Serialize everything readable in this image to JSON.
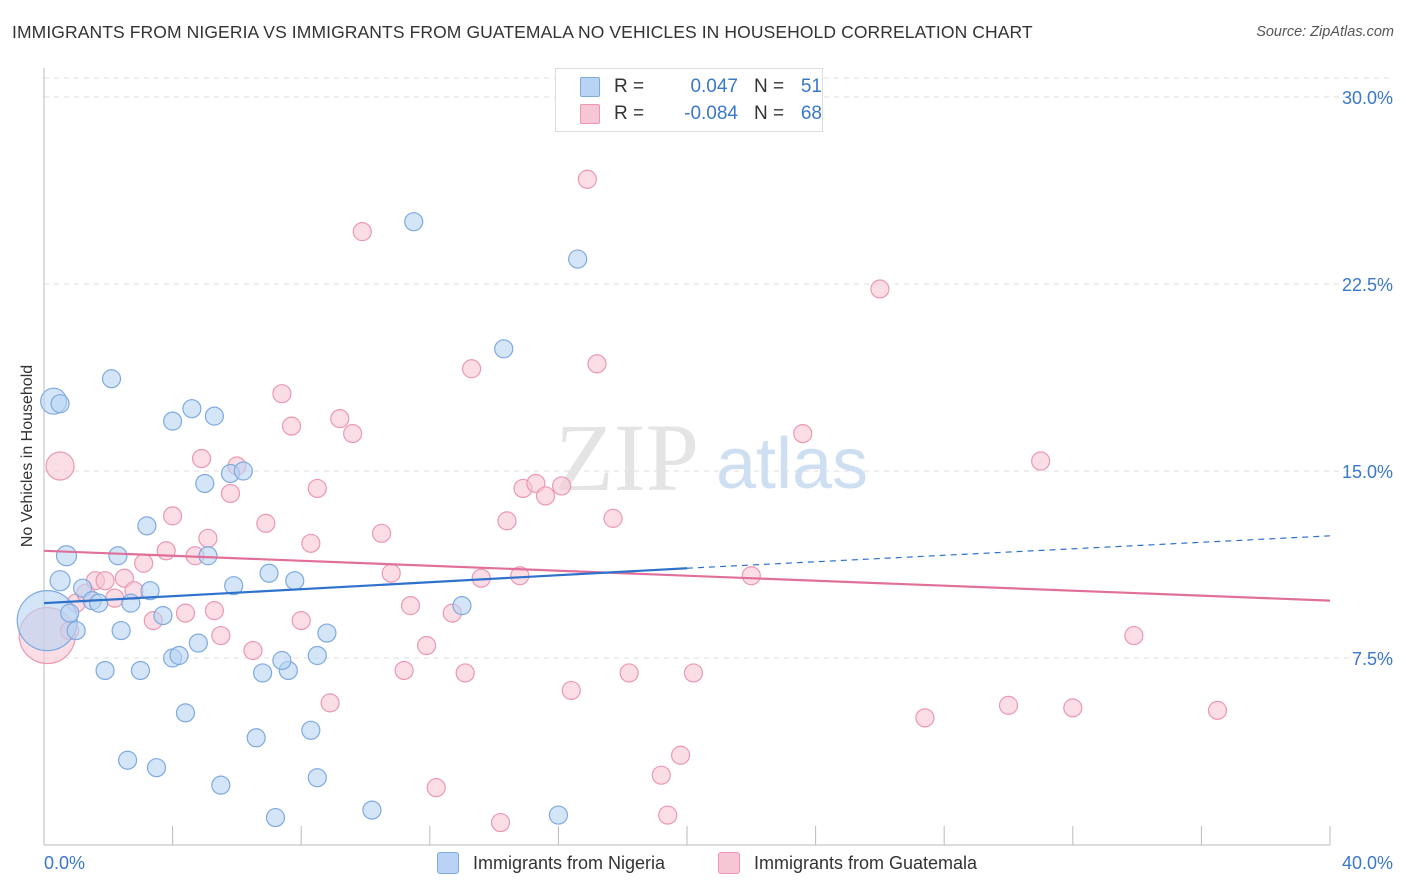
{
  "header": {
    "title": "IMMIGRANTS FROM NIGERIA VS IMMIGRANTS FROM GUATEMALA NO VEHICLES IN HOUSEHOLD CORRELATION CHART",
    "source": "Source: ZipAtlas.com"
  },
  "watermark": {
    "zip": "ZIP",
    "atlas": "atlas"
  },
  "colors": {
    "nigeria_fill": "#b8d3f3",
    "nigeria_stroke": "#7eaae0",
    "nigeria_line": "#2e72cc",
    "guatemala_fill": "#f7c6d4",
    "guatemala_stroke": "#ec98b2",
    "guatemala_line": "#e0709a",
    "tick_label": "#3a78c9",
    "grid": "#dddddd"
  },
  "legend": {
    "r_label": "R =",
    "n_label": "N =",
    "rows": [
      {
        "r": "0.047",
        "n": "51"
      },
      {
        "r": "-0.084",
        "n": "68"
      }
    ]
  },
  "chart_data": {
    "type": "scatter",
    "title": "IMMIGRANTS FROM NIGERIA VS IMMIGRANTS FROM GUATEMALA NO VEHICLES IN HOUSEHOLD CORRELATION CHART",
    "xlabel": "",
    "ylabel": "No Vehicles in Household",
    "xlim": [
      0,
      40
    ],
    "ylim": [
      0,
      30.5
    ],
    "x_tick_labels": [
      "0.0%",
      "40.0%"
    ],
    "y_ticks": [
      7.5,
      15.0,
      22.5,
      30.0
    ],
    "y_tick_labels": [
      "7.5%",
      "15.0%",
      "22.5%",
      "30.0%"
    ],
    "grid": true,
    "legend_position": "top-center",
    "series": [
      {
        "name": "Immigrants from Nigeria",
        "points": [
          [
            0.1,
            9.0
          ],
          [
            0.3,
            17.8
          ],
          [
            0.5,
            17.7
          ],
          [
            0.5,
            10.6
          ],
          [
            0.7,
            11.6
          ],
          [
            0.8,
            9.3
          ],
          [
            1.0,
            8.6
          ],
          [
            1.2,
            10.3
          ],
          [
            1.5,
            9.8
          ],
          [
            1.7,
            9.7
          ],
          [
            1.9,
            7.0
          ],
          [
            2.1,
            18.7
          ],
          [
            2.3,
            11.6
          ],
          [
            2.4,
            8.6
          ],
          [
            2.6,
            3.4
          ],
          [
            2.7,
            9.7
          ],
          [
            3.0,
            7.0
          ],
          [
            3.2,
            12.8
          ],
          [
            3.3,
            10.2
          ],
          [
            3.5,
            3.1
          ],
          [
            3.7,
            9.2
          ],
          [
            4.0,
            7.5
          ],
          [
            4.0,
            17.0
          ],
          [
            4.2,
            7.6
          ],
          [
            4.4,
            5.3
          ],
          [
            4.6,
            17.5
          ],
          [
            4.8,
            8.1
          ],
          [
            5.0,
            14.5
          ],
          [
            5.1,
            11.6
          ],
          [
            5.3,
            17.2
          ],
          [
            5.5,
            2.4
          ],
          [
            5.8,
            14.9
          ],
          [
            5.9,
            10.4
          ],
          [
            6.2,
            15.0
          ],
          [
            6.6,
            4.3
          ],
          [
            6.8,
            6.9
          ],
          [
            7.0,
            10.9
          ],
          [
            7.2,
            1.1
          ],
          [
            7.6,
            7.0
          ],
          [
            7.8,
            10.6
          ],
          [
            7.4,
            7.4
          ],
          [
            8.3,
            4.6
          ],
          [
            8.5,
            7.6
          ],
          [
            8.5,
            2.7
          ],
          [
            8.8,
            8.5
          ],
          [
            10.2,
            1.4
          ],
          [
            11.5,
            25.0
          ],
          [
            13.0,
            9.6
          ],
          [
            14.3,
            19.9
          ],
          [
            16.0,
            1.2
          ],
          [
            16.6,
            23.5
          ]
        ],
        "sizes": [
          30,
          13,
          9,
          10,
          10,
          9,
          9,
          9,
          9,
          9,
          9,
          9,
          9,
          9,
          9,
          9,
          9,
          9,
          9,
          9,
          9,
          9,
          9,
          9,
          9,
          9,
          9,
          9,
          9,
          9,
          9,
          9,
          9,
          9,
          9,
          9,
          9,
          9,
          9,
          9,
          9,
          9,
          9,
          9,
          9,
          9,
          9,
          9,
          9,
          9,
          9
        ]
      },
      {
        "name": "Immigrants from Guatemala",
        "points": [
          [
            0.1,
            8.4
          ],
          [
            0.5,
            15.2
          ],
          [
            0.8,
            8.6
          ],
          [
            1.0,
            9.7
          ],
          [
            1.3,
            10.1
          ],
          [
            1.6,
            10.6
          ],
          [
            1.9,
            10.6
          ],
          [
            2.2,
            9.9
          ],
          [
            2.5,
            10.7
          ],
          [
            2.8,
            10.2
          ],
          [
            3.1,
            11.3
          ],
          [
            3.4,
            9.0
          ],
          [
            3.8,
            11.8
          ],
          [
            4.0,
            13.2
          ],
          [
            4.4,
            9.3
          ],
          [
            4.7,
            11.6
          ],
          [
            4.9,
            15.5
          ],
          [
            5.1,
            12.3
          ],
          [
            5.3,
            9.4
          ],
          [
            5.5,
            8.4
          ],
          [
            5.8,
            14.1
          ],
          [
            6.0,
            15.2
          ],
          [
            6.5,
            7.8
          ],
          [
            6.9,
            12.9
          ],
          [
            7.4,
            18.1
          ],
          [
            7.7,
            16.8
          ],
          [
            8.0,
            9.0
          ],
          [
            8.3,
            12.1
          ],
          [
            8.5,
            14.3
          ],
          [
            8.9,
            5.7
          ],
          [
            9.2,
            17.1
          ],
          [
            9.6,
            16.5
          ],
          [
            9.9,
            24.6
          ],
          [
            10.5,
            12.5
          ],
          [
            10.8,
            10.9
          ],
          [
            11.2,
            7.0
          ],
          [
            11.4,
            9.6
          ],
          [
            11.9,
            8.0
          ],
          [
            12.2,
            2.3
          ],
          [
            12.7,
            9.3
          ],
          [
            13.1,
            6.9
          ],
          [
            13.3,
            19.1
          ],
          [
            13.6,
            10.7
          ],
          [
            14.2,
            0.9
          ],
          [
            14.4,
            13.0
          ],
          [
            14.8,
            10.8
          ],
          [
            14.9,
            14.3
          ],
          [
            15.3,
            14.5
          ],
          [
            15.6,
            14.0
          ],
          [
            16.1,
            14.4
          ],
          [
            16.4,
            6.2
          ],
          [
            16.9,
            26.7
          ],
          [
            17.2,
            19.3
          ],
          [
            17.7,
            13.1
          ],
          [
            18.2,
            6.9
          ],
          [
            19.2,
            2.8
          ],
          [
            19.4,
            1.2
          ],
          [
            19.8,
            3.6
          ],
          [
            20.2,
            6.9
          ],
          [
            22.0,
            10.8
          ],
          [
            23.6,
            16.5
          ],
          [
            26.0,
            22.3
          ],
          [
            27.4,
            5.1
          ],
          [
            30.0,
            5.6
          ],
          [
            31.0,
            15.4
          ],
          [
            32.0,
            5.5
          ],
          [
            33.9,
            8.4
          ],
          [
            36.5,
            5.4
          ]
        ],
        "sizes": [
          28,
          14,
          9,
          9,
          9,
          9,
          9,
          9,
          9,
          9,
          9,
          9,
          9,
          9,
          9,
          9,
          9,
          9,
          9,
          9,
          9,
          9,
          9,
          9,
          9,
          9,
          9,
          9,
          9,
          9,
          9,
          9,
          9,
          9,
          9,
          9,
          9,
          9,
          9,
          9,
          9,
          9,
          9,
          9,
          9,
          9,
          9,
          9,
          9,
          9,
          9,
          9,
          9,
          9,
          9,
          9,
          9,
          9,
          9,
          9,
          9,
          9,
          9,
          9,
          9,
          9,
          9,
          9
        ]
      }
    ],
    "trendlines": [
      {
        "series": "Immigrants from Nigeria",
        "x0": 0,
        "y0": 9.7,
        "x1": 20,
        "y1": 11.1,
        "dashed_to_x": 40,
        "dashed_to_y": 12.4
      },
      {
        "series": "Immigrants from Guatemala",
        "x0": 0,
        "y0": 11.8,
        "x1": 40,
        "y1": 9.8
      }
    ]
  },
  "bottom_legend": {
    "items": [
      {
        "label": "Immigrants from Nigeria"
      },
      {
        "label": "Immigrants from Guatemala"
      }
    ]
  }
}
